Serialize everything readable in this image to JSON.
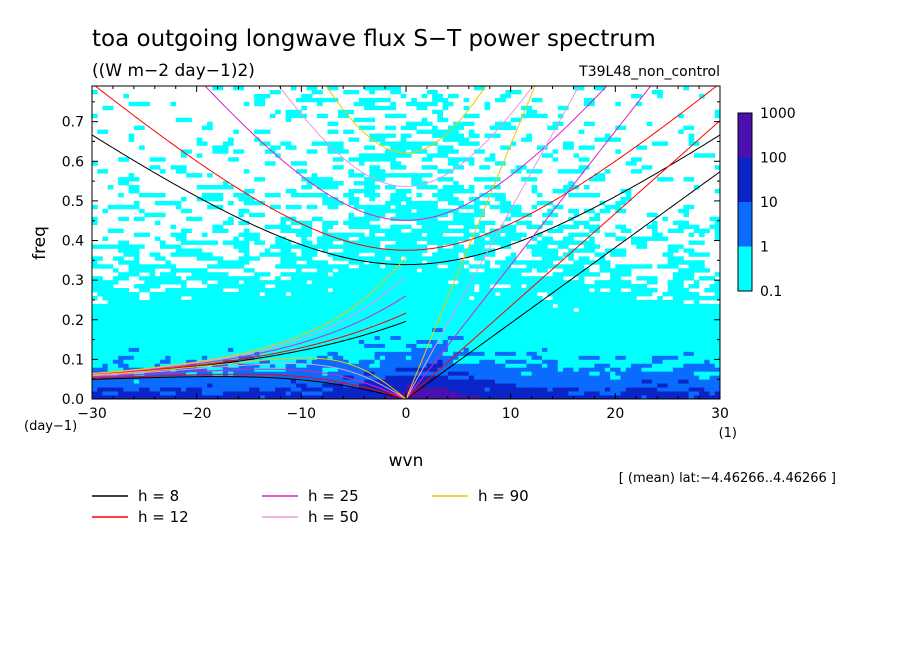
{
  "chart_data": {
    "type": "heatmap",
    "title": "toa outgoing longwave flux S−T power spectrum",
    "subtitle": "((W m−2 day−1)2)",
    "run_label": "T39L48_non_control",
    "xlabel": "wvn",
    "ylabel": "freq",
    "x_unit": "(1)",
    "y_unit": "(day−1)",
    "annotation": "[ (mean) lat:−4.46266..4.46266 ]",
    "xlim": [
      -30,
      30
    ],
    "ylim": [
      0,
      0.79
    ],
    "x_ticks": [
      -30,
      -20,
      -10,
      0,
      10,
      20,
      30
    ],
    "x_tick_labels": [
      "−30",
      "−20",
      "−10",
      "0",
      "10",
      "20",
      "30"
    ],
    "y_ticks": [
      0,
      0.1,
      0.2,
      0.3,
      0.4,
      0.5,
      0.6,
      0.7
    ],
    "y_tick_labels": [
      "0.0",
      "0.1",
      "0.2",
      "0.3",
      "0.4",
      "0.5",
      "0.6",
      "0.7"
    ],
    "colorbar": {
      "levels": [
        0.1,
        1,
        10,
        100,
        1000
      ],
      "labels": [
        "0.1",
        "1",
        "10",
        "100",
        "1000"
      ],
      "colors": [
        "#00ffff",
        "#0a6cff",
        "#0a24c8",
        "#4a10b0"
      ]
    },
    "series": [
      {
        "name": "h = 8",
        "h": 8,
        "color": "#000000"
      },
      {
        "name": "h = 12",
        "h": 12,
        "color": "#ff0000"
      },
      {
        "name": "h = 25",
        "h": 25,
        "color": "#e020c0"
      },
      {
        "name": "h = 50",
        "h": 50,
        "color": "#e898e0"
      },
      {
        "name": "h = 90",
        "h": 90,
        "color": "#f0c800"
      }
    ],
    "legend_placement": "bottom"
  }
}
